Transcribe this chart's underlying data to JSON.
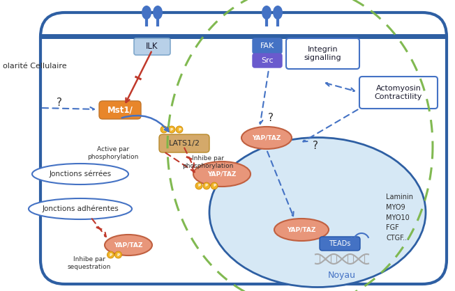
{
  "bg_color": "#ffffff",
  "cell_border_color": "#2E5FA3",
  "nucleus_fill_color": "#d6e8f5",
  "nucleus_border_color": "#2E5FA3",
  "green_dashed_color": "#7ab648",
  "blue_color": "#4472c4",
  "red_color": "#c0392b",
  "orange_box_color": "#e8862a",
  "light_orange_box_color": "#d4a96a",
  "salmon_color": "#e8967a",
  "light_blue_box_color": "#b8d0e8",
  "gold_color": "#f0b429",
  "purple_color": "#6a5acd",
  "label_ILK": "ILK",
  "label_FAK": "FAK",
  "label_Src": "Src",
  "label_Integrin": "Integrin\nsignalling",
  "label_Actomyosin": "Actomyosin\nContractility",
  "label_Mst1": "Mst1/",
  "label_LATS": "LATS1/2",
  "label_YAPTAZ": "YAP/TAZ",
  "label_TEADs": "TEADs",
  "label_Noyau": "Noyau",
  "label_Active": "Active par\nphosphorylation",
  "label_Inhibe_phos": "Inhibe par\nphosphorylation",
  "label_Inhibe_seq": "Inhibe par\nsequestration",
  "label_JS": "Jonctions sérrées",
  "label_JA": "Jonctions adhérentes",
  "label_genes": "Laminin\nMYO9\nMYO10\nFGF\nCTGF...",
  "label_polarity": "olarité Cellulaire"
}
